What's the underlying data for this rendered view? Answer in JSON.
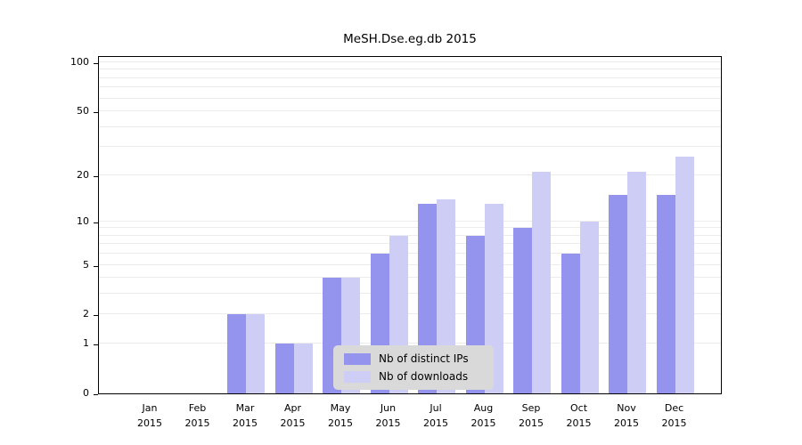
{
  "title": "MeSH.Dse.eg.db 2015",
  "chart_data": {
    "type": "bar",
    "title": "MeSH.Dse.eg.db 2015",
    "categories": [
      "Jan",
      "Feb",
      "Mar",
      "Apr",
      "May",
      "Jun",
      "Jul",
      "Aug",
      "Sep",
      "Oct",
      "Nov",
      "Dec"
    ],
    "year": "2015",
    "series": [
      {
        "name": "Nb of distinct IPs",
        "color": "#9494ee",
        "values": [
          0,
          0,
          2,
          1,
          4,
          6,
          13,
          8,
          9,
          6,
          15,
          15
        ]
      },
      {
        "name": "Nb of downloads",
        "color": "#cdcdf6",
        "values": [
          0,
          0,
          2,
          1,
          4,
          8,
          14,
          13,
          21,
          10,
          21,
          26
        ]
      }
    ],
    "yscale": "log1p",
    "yticks": [
      0,
      1,
      2,
      5,
      10,
      20,
      50,
      100
    ],
    "minor_gridlines": [
      1,
      2,
      3,
      4,
      5,
      6,
      7,
      8,
      9,
      10,
      20,
      30,
      40,
      50,
      60,
      70,
      80,
      90,
      100
    ],
    "ylim_top_value": 100,
    "grid": true,
    "legend_position": "inside-bottom-center",
    "xlabel": "",
    "ylabel": ""
  }
}
